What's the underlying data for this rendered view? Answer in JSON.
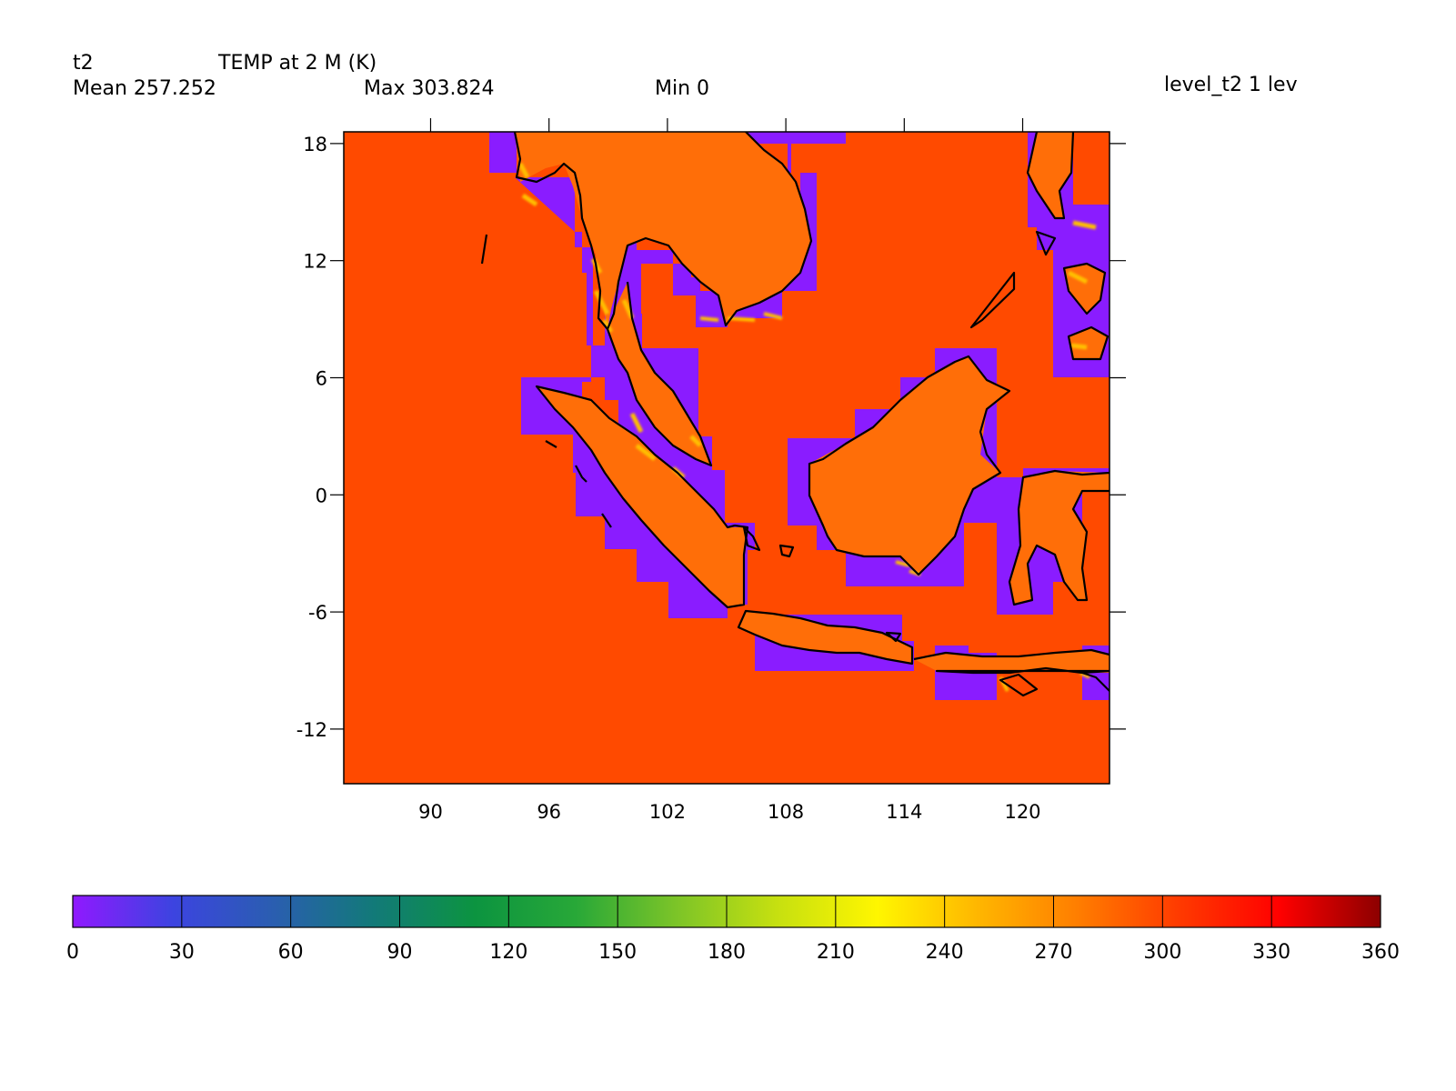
{
  "header": {
    "var_name": "t2",
    "long_name": "TEMP at 2 M (K)",
    "mean": "Mean 257.252",
    "max": "Max 303.824",
    "min": "Min 0",
    "level": "level_t2 1 lev"
  },
  "map": {
    "lon_range": [
      85.6,
      124.4
    ],
    "lat_range": [
      -14.8,
      18.6
    ],
    "lon_ticks": [
      90,
      96,
      102,
      108,
      114,
      120
    ],
    "lat_ticks": [
      18,
      12,
      6,
      0,
      -6,
      -12
    ],
    "colors": {
      "ocean": "#ff4a00",
      "land": "#ff6e08",
      "missing": "#8a1cff",
      "coast_warm": "#ffc000",
      "coastline": "#000000"
    }
  },
  "colorbar": {
    "ticks": [
      "0",
      "30",
      "60",
      "90",
      "120",
      "150",
      "180",
      "210",
      "240",
      "270",
      "300",
      "330",
      "360"
    ],
    "stops": [
      "#9019ff",
      "#3c44e0",
      "#2a5eb0",
      "#127a78",
      "#0c9440",
      "#28a838",
      "#7cc428",
      "#c6e010",
      "#fff600",
      "#ffb600",
      "#ff7d00",
      "#ff3a00",
      "#ff0000",
      "#8c0000"
    ]
  }
}
